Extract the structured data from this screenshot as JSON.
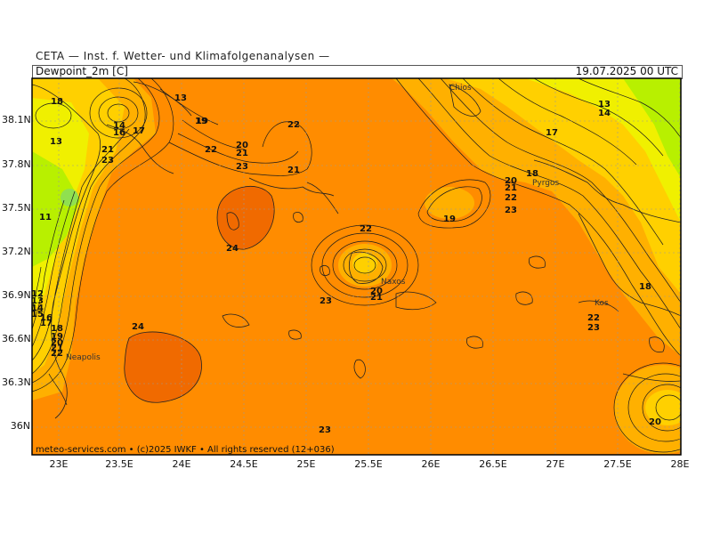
{
  "header": {
    "source": "CETA — Inst. f. Wetter- und Klimafolgenanalysen —",
    "variable": "Dewpoint_2m [C]",
    "valid_time": "19.07.2025 00 UTC"
  },
  "footer": "meteo-services.com • (c)2025 IWKF • All rights reserved (12+036)",
  "axes": {
    "lat_ticks": [
      "38.1N",
      "37.8N",
      "37.5N",
      "37.2N",
      "36.9N",
      "36.6N",
      "36.3N",
      "36N"
    ],
    "lon_ticks": [
      "23E",
      "23.5E",
      "24E",
      "24.5E",
      "25E",
      "25.5E",
      "26E",
      "26.5E",
      "27E",
      "27.5E",
      "28E"
    ]
  },
  "places": [
    "Chios",
    "Pyrgos",
    "Naxos",
    "Kos",
    "Neapolis"
  ],
  "contour_labels": [
    {
      "t": "18"
    },
    {
      "t": "13"
    },
    {
      "t": "19"
    },
    {
      "t": "14"
    },
    {
      "t": "16"
    },
    {
      "t": "17"
    },
    {
      "t": "13"
    },
    {
      "t": "21"
    },
    {
      "t": "23"
    },
    {
      "t": "11"
    },
    {
      "t": "19"
    },
    {
      "t": "22"
    },
    {
      "t": "20"
    },
    {
      "t": "21"
    },
    {
      "t": "23"
    },
    {
      "t": "22"
    },
    {
      "t": "21"
    },
    {
      "t": "24"
    },
    {
      "t": "22"
    },
    {
      "t": "20"
    },
    {
      "t": "21"
    },
    {
      "t": "23"
    },
    {
      "t": "19"
    },
    {
      "t": "13"
    },
    {
      "t": "14"
    },
    {
      "t": "17"
    },
    {
      "t": "18"
    },
    {
      "t": "20"
    },
    {
      "t": "21"
    },
    {
      "t": "22"
    },
    {
      "t": "23"
    },
    {
      "t": "18"
    },
    {
      "t": "22"
    },
    {
      "t": "23"
    },
    {
      "t": "24"
    },
    {
      "t": "23"
    },
    {
      "t": "20"
    },
    {
      "t": "12"
    },
    {
      "t": "13"
    },
    {
      "t": "14"
    },
    {
      "t": "15"
    },
    {
      "t": "16"
    },
    {
      "t": "17"
    },
    {
      "t": "18"
    },
    {
      "t": "19"
    },
    {
      "t": "20"
    },
    {
      "t": "21"
    },
    {
      "t": "22"
    }
  ],
  "colors": {
    "orange_23": "#ff8c00",
    "orange_24": "#f06a00",
    "yellow_orange_20": "#ffb000",
    "yellow_17": "#ffd000",
    "yellow_14": "#f0f000",
    "lime_11": "#b8f000"
  }
}
